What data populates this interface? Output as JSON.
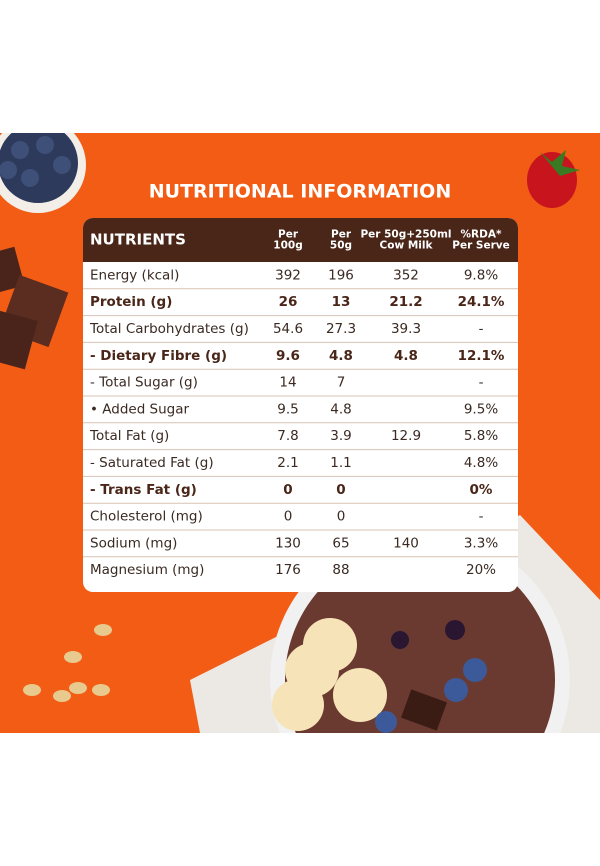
{
  "title": "NUTRITIONAL INFORMATION",
  "table": {
    "header": [
      [
        "NUTRIENTS"
      ],
      [
        "Per",
        "100g"
      ],
      [
        "Per",
        "50g"
      ],
      [
        "Per 50g+250ml",
        "Cow Milk"
      ],
      [
        "%RDA*",
        "Per Serve"
      ]
    ],
    "rows": [
      {
        "cells": [
          "Energy (kcal)",
          "392",
          "196",
          "352",
          "9.8%"
        ],
        "bold": false
      },
      {
        "cells": [
          "Protein (g)",
          "26",
          "13",
          "21.2",
          "24.1%"
        ],
        "bold": true
      },
      {
        "cells": [
          "Total Carbohydrates (g)",
          "54.6",
          "27.3",
          "39.3",
          "-"
        ],
        "bold": false
      },
      {
        "cells": [
          "- Dietary Fibre (g)",
          "9.6",
          "4.8",
          "4.8",
          "12.1%"
        ],
        "bold": true
      },
      {
        "cells": [
          "- Total Sugar (g)",
          "14",
          "7",
          null,
          "-"
        ],
        "bold": false
      },
      {
        "cells": [
          "• Added Sugar",
          "9.5",
          "4.8",
          null,
          "9.5%"
        ],
        "bold": false
      },
      {
        "cells": [
          "Total Fat (g)",
          "7.8",
          "3.9",
          "12.9",
          "5.8%"
        ],
        "bold": false
      },
      {
        "cells": [
          "- Saturated Fat (g)",
          "2.1",
          "1.1",
          null,
          "4.8%"
        ],
        "bold": false
      },
      {
        "cells": [
          "- Trans Fat (g)",
          "0",
          "0",
          null,
          "0%"
        ],
        "bold": true
      },
      {
        "cells": [
          "Cholesterol (mg)",
          "0",
          "0",
          null,
          "-"
        ],
        "bold": false
      },
      {
        "cells": [
          "Sodium (mg)",
          "130",
          "65",
          "140",
          "3.3%"
        ],
        "bold": false
      },
      {
        "cells": [
          "Magnesium (mg)",
          "176",
          "88",
          null,
          "20%"
        ],
        "bold": false
      }
    ]
  }
}
